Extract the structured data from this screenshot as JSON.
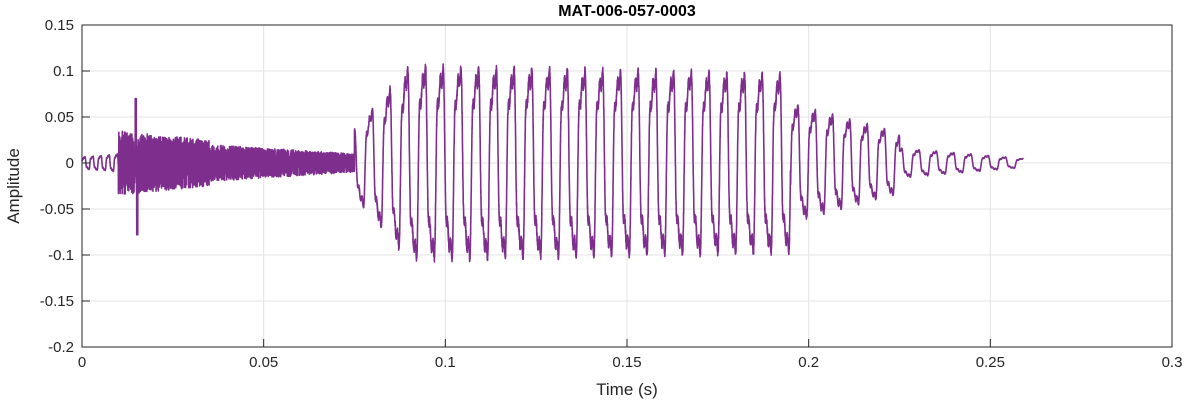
{
  "chart_data": {
    "type": "line",
    "title": "MAT-006-057-0003",
    "xlabel": "Time (s)",
    "ylabel": "Amplitude",
    "xlim": [
      0,
      0.3
    ],
    "ylim": [
      -0.2,
      0.15
    ],
    "grid": true,
    "x_ticks": [
      0,
      0.05,
      0.1,
      0.15,
      0.2,
      0.25,
      0.3
    ],
    "x_tick_labels": [
      "0",
      "0.05",
      "0.1",
      "0.15",
      "0.2",
      "0.25",
      "0.3"
    ],
    "y_ticks": [
      0.15,
      0.1,
      0.05,
      0,
      -0.05,
      -0.1,
      -0.15,
      -0.2
    ],
    "y_tick_labels": [
      "0.15",
      "0.1",
      "0.05",
      "0",
      "-0.05",
      "-0.1",
      "-0.15",
      "-0.2"
    ],
    "series": [
      {
        "color": "#7E2F8E",
        "duration": 0.259,
        "segments": [
          {
            "t0": 0.0,
            "t1": 0.01,
            "kind": "smooth",
            "freq": 450,
            "amp_start": 0.008,
            "amp_end": 0.012
          },
          {
            "t0": 0.01,
            "t1": 0.035,
            "kind": "noise",
            "amp_start": 0.035,
            "amp_end": 0.025,
            "peak_up": 0.07,
            "peak_down": -0.078
          },
          {
            "t0": 0.035,
            "t1": 0.075,
            "kind": "noise",
            "amp_start": 0.02,
            "amp_end": 0.01
          },
          {
            "t0": 0.075,
            "t1": 0.09,
            "kind": "voiced",
            "freq": 205,
            "amp_start": 0.045,
            "amp_end": 0.13
          },
          {
            "t0": 0.09,
            "t1": 0.195,
            "kind": "voiced",
            "freq": 205,
            "amp_start": 0.13,
            "amp_end": 0.12
          },
          {
            "t0": 0.195,
            "t1": 0.225,
            "kind": "voiced",
            "freq": 210,
            "amp_start": 0.08,
            "amp_end": 0.04
          },
          {
            "t0": 0.225,
            "t1": 0.259,
            "kind": "voiced",
            "freq": 210,
            "amp_start": 0.02,
            "amp_end": 0.006
          }
        ]
      }
    ]
  }
}
